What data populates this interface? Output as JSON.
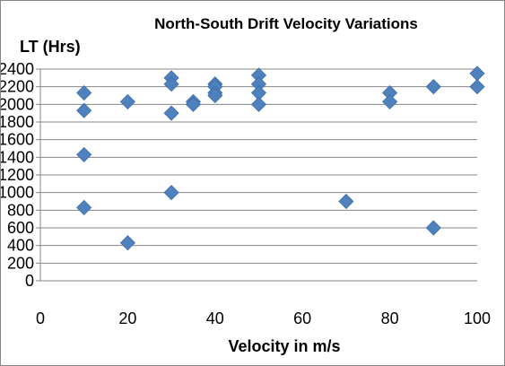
{
  "chart_data": {
    "type": "scatter",
    "title": "North-South Drift Velocity Variations",
    "xlabel": "Velocity in m/s",
    "ylabel": "LT (Hrs)",
    "xlim": [
      0,
      100
    ],
    "ylim": [
      0,
      2400
    ],
    "x_ticks": [
      "0",
      "20",
      "40",
      "60",
      "80",
      "100"
    ],
    "y_ticks": [
      "0",
      "200",
      "400",
      "600",
      "800",
      "1000",
      "1200",
      "1400",
      "1600",
      "1800",
      "2000",
      "2200",
      "2400"
    ],
    "grid": "horizontal",
    "marker": "diamond",
    "marker_color": "#4F81BD",
    "series": [
      {
        "points": [
          {
            "x": 10,
            "y": 2130
          },
          {
            "x": 10,
            "y": 1930
          },
          {
            "x": 10,
            "y": 1430
          },
          {
            "x": 10,
            "y": 830
          },
          {
            "x": 20,
            "y": 2030
          },
          {
            "x": 20,
            "y": 430
          },
          {
            "x": 30,
            "y": 2300
          },
          {
            "x": 30,
            "y": 2230
          },
          {
            "x": 30,
            "y": 1900
          },
          {
            "x": 30,
            "y": 1000
          },
          {
            "x": 35,
            "y": 2030
          },
          {
            "x": 35,
            "y": 2000
          },
          {
            "x": 40,
            "y": 2230
          },
          {
            "x": 40,
            "y": 2200
          },
          {
            "x": 40,
            "y": 2130
          },
          {
            "x": 40,
            "y": 2100
          },
          {
            "x": 50,
            "y": 2330
          },
          {
            "x": 50,
            "y": 2230
          },
          {
            "x": 50,
            "y": 2130
          },
          {
            "x": 50,
            "y": 2000
          },
          {
            "x": 70,
            "y": 900
          },
          {
            "x": 80,
            "y": 2130
          },
          {
            "x": 80,
            "y": 2030
          },
          {
            "x": 90,
            "y": 2200
          },
          {
            "x": 90,
            "y": 600
          },
          {
            "x": 100,
            "y": 2350
          },
          {
            "x": 100,
            "y": 2200
          }
        ]
      }
    ]
  }
}
